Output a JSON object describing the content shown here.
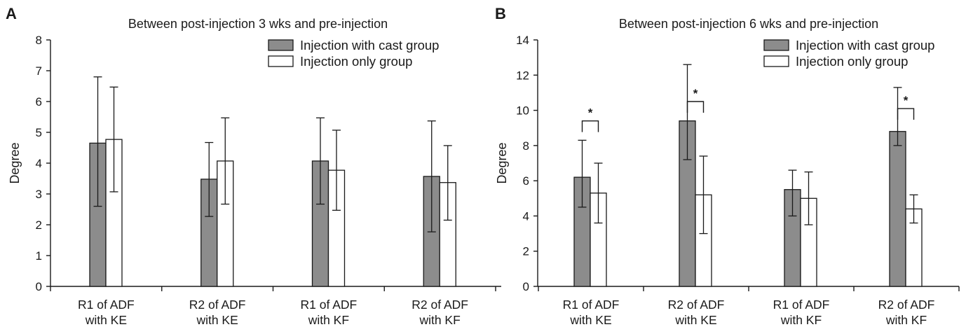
{
  "colors": {
    "cast": "#8c8c8c",
    "only": "#ffffff",
    "stroke": "#1a1a1a"
  },
  "chart_data": [
    {
      "type": "bar",
      "panel": "A",
      "title": "Between post-injection 3 wks and pre-injection",
      "ylabel": "Degree",
      "xlabel": "",
      "ylim": [
        0,
        8
      ],
      "yticks": [
        0,
        1,
        2,
        3,
        4,
        5,
        6,
        7,
        8
      ],
      "grid": false,
      "legend_position": "top-right",
      "categories": [
        [
          "R1 of ADF",
          "with KE"
        ],
        [
          "R2 of ADF",
          "with KE"
        ],
        [
          "R1 of ADF",
          "with KF"
        ],
        [
          "R2 of ADF",
          "with KF"
        ]
      ],
      "series": [
        {
          "name": "Injection with cast group",
          "color_key": "cast",
          "values": [
            4.65,
            3.48,
            4.07,
            3.57
          ],
          "err_low": [
            2.6,
            2.27,
            2.67,
            1.77
          ],
          "err_high": [
            6.8,
            4.67,
            5.47,
            5.37
          ]
        },
        {
          "name": "Injection only group",
          "color_key": "only",
          "values": [
            4.77,
            4.07,
            3.77,
            3.37
          ],
          "err_low": [
            3.07,
            2.67,
            2.47,
            2.15
          ],
          "err_high": [
            6.47,
            5.47,
            5.07,
            4.57
          ]
        }
      ],
      "significance": []
    },
    {
      "type": "bar",
      "panel": "B",
      "title": "Between post-injection 6 wks and pre-injection",
      "ylabel": "Degree",
      "xlabel": "",
      "ylim": [
        0,
        14
      ],
      "yticks": [
        0,
        2,
        4,
        6,
        8,
        10,
        12,
        14
      ],
      "grid": false,
      "legend_position": "top-right",
      "categories": [
        [
          "R1 of ADF",
          "with KE"
        ],
        [
          "R2 of ADF",
          "with KE"
        ],
        [
          "R1 of ADF",
          "with KF"
        ],
        [
          "R2 of ADF",
          "with KF"
        ]
      ],
      "series": [
        {
          "name": "Injection with cast group",
          "color_key": "cast",
          "values": [
            6.2,
            9.4,
            5.5,
            8.8
          ],
          "err_low": [
            4.5,
            7.2,
            4.0,
            8.0
          ],
          "err_high": [
            8.3,
            12.6,
            6.6,
            11.3
          ]
        },
        {
          "name": "Injection only group",
          "color_key": "only",
          "values": [
            5.3,
            5.2,
            5.0,
            4.4
          ],
          "err_low": [
            3.6,
            3.0,
            3.5,
            3.6
          ],
          "err_high": [
            7.0,
            7.4,
            6.5,
            5.2
          ]
        }
      ],
      "significance": [
        {
          "category_index": 0,
          "label": "*",
          "level": 9.4
        },
        {
          "category_index": 1,
          "label": "*",
          "level": 10.5
        },
        {
          "category_index": 3,
          "label": "*",
          "level": 10.1
        }
      ]
    }
  ]
}
